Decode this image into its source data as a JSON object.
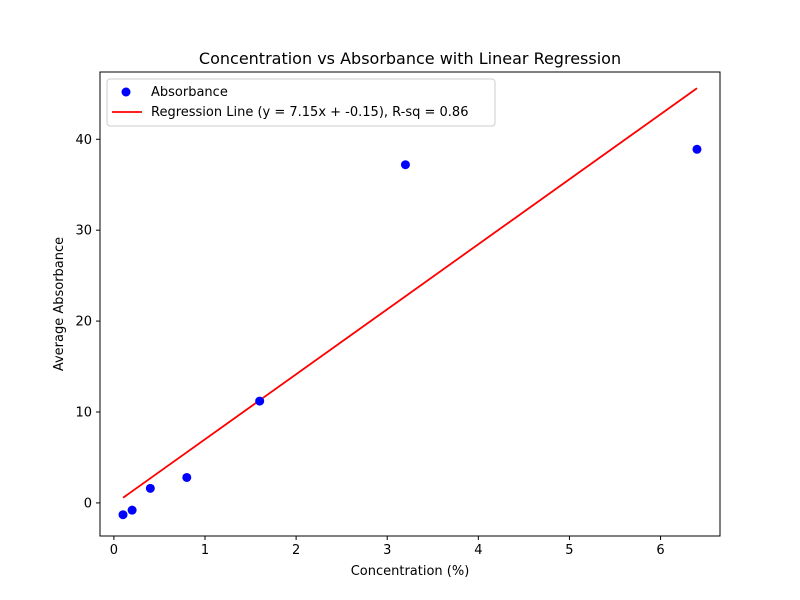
{
  "chart_data": {
    "type": "scatter",
    "title": "Concentration vs Absorbance with Linear Regression",
    "xlabel": "Concentration (%)",
    "ylabel": "Average Absorbance",
    "xlim": [
      -0.1525,
      6.6525
    ],
    "ylim": [
      -3.64,
      47.4
    ],
    "xticks": [
      0,
      1,
      2,
      3,
      4,
      5,
      6
    ],
    "yticks": [
      0,
      10,
      20,
      30,
      40
    ],
    "grid": false,
    "legend_position": "top-left",
    "series": [
      {
        "name": "Absorbance",
        "type": "scatter",
        "color": "#0000ff",
        "x": [
          0.1,
          0.2,
          0.4,
          0.8,
          1.6,
          3.2,
          6.4
        ],
        "y": [
          -1.3,
          -0.8,
          1.6,
          2.8,
          11.2,
          37.2,
          38.9
        ]
      },
      {
        "name": "Regression Line (y = 7.15x + -0.15), R-sq = 0.86",
        "type": "line",
        "color": "#ff0000",
        "x": [
          0.1,
          6.4
        ],
        "y": [
          0.565,
          45.61
        ]
      }
    ]
  }
}
